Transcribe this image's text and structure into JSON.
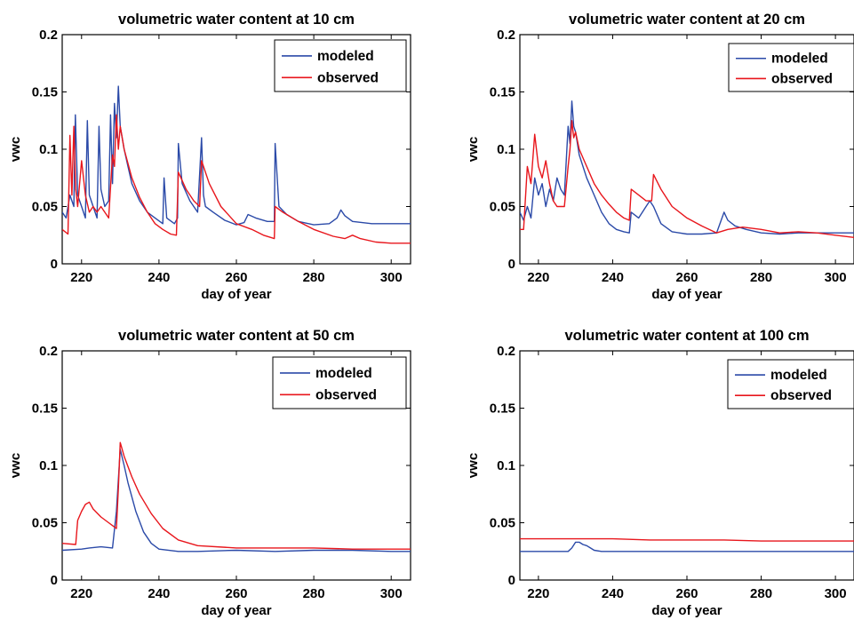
{
  "colors": {
    "modeled": "#2b4aa8",
    "observed": "#e8161c",
    "axis": "#000000"
  },
  "chart_data": [
    {
      "type": "line",
      "title": "volumetric water content at 10 cm",
      "xlabel": "day of year",
      "ylabel": "vwc",
      "xlim": [
        215,
        305
      ],
      "ylim": [
        0,
        0.2
      ],
      "xticks": [
        220,
        240,
        260,
        280,
        300
      ],
      "yticks": [
        0,
        0.05,
        0.1,
        0.15,
        0.2
      ],
      "ytick_labels": [
        "0",
        "0.05",
        "0.1",
        "0.15",
        "0.2"
      ],
      "grid": false,
      "legend": "top-right",
      "series": [
        {
          "name": "modeled",
          "color": "#2b4aa8",
          "x": [
            215,
            216,
            217,
            218,
            218.4,
            219,
            220,
            221,
            221.5,
            222,
            223,
            224,
            224.5,
            225,
            226,
            227,
            227.5,
            228,
            228.5,
            229,
            229.5,
            230,
            231,
            232,
            233,
            235,
            237,
            239,
            241,
            241.3,
            242,
            244,
            244.8,
            245,
            246,
            248,
            250,
            251,
            251.5,
            252,
            254,
            257,
            260,
            262,
            263,
            265,
            268,
            269.8,
            270,
            271,
            273,
            276,
            280,
            284,
            286,
            287,
            288,
            290,
            295,
            300,
            305
          ],
          "y": [
            0.045,
            0.04,
            0.06,
            0.05,
            0.13,
            0.06,
            0.05,
            0.04,
            0.125,
            0.06,
            0.05,
            0.04,
            0.12,
            0.065,
            0.05,
            0.055,
            0.13,
            0.07,
            0.14,
            0.11,
            0.155,
            0.12,
            0.1,
            0.085,
            0.07,
            0.055,
            0.045,
            0.04,
            0.035,
            0.075,
            0.04,
            0.035,
            0.04,
            0.105,
            0.07,
            0.055,
            0.045,
            0.11,
            0.06,
            0.05,
            0.045,
            0.038,
            0.034,
            0.036,
            0.043,
            0.04,
            0.037,
            0.037,
            0.105,
            0.05,
            0.043,
            0.037,
            0.034,
            0.035,
            0.04,
            0.047,
            0.042,
            0.037,
            0.035,
            0.035,
            0.035
          ]
        },
        {
          "name": "observed",
          "color": "#e8161c",
          "x": [
            215,
            216.5,
            217,
            217.5,
            218,
            218.5,
            219,
            220,
            221,
            222,
            223,
            224,
            225,
            226,
            227,
            228,
            228.5,
            229,
            229.5,
            230,
            231,
            233,
            235,
            237,
            239,
            241,
            243,
            244.5,
            245,
            247,
            249,
            250.5,
            251,
            253,
            256,
            260,
            264,
            267,
            269.8,
            270,
            272,
            276,
            280,
            285,
            288,
            290,
            292,
            296,
            300,
            305
          ],
          "y": [
            0.03,
            0.026,
            0.112,
            0.06,
            0.12,
            0.065,
            0.05,
            0.09,
            0.06,
            0.045,
            0.05,
            0.045,
            0.05,
            0.045,
            0.04,
            0.095,
            0.085,
            0.13,
            0.1,
            0.12,
            0.1,
            0.075,
            0.058,
            0.045,
            0.035,
            0.03,
            0.026,
            0.025,
            0.08,
            0.065,
            0.055,
            0.05,
            0.09,
            0.07,
            0.05,
            0.035,
            0.03,
            0.025,
            0.022,
            0.05,
            0.045,
            0.037,
            0.03,
            0.024,
            0.022,
            0.025,
            0.022,
            0.019,
            0.018,
            0.018
          ]
        }
      ]
    },
    {
      "type": "line",
      "title": "volumetric water content at 20 cm",
      "xlabel": "day of year",
      "ylabel": "vwc",
      "xlim": [
        215,
        305
      ],
      "ylim": [
        0,
        0.2
      ],
      "xticks": [
        220,
        240,
        260,
        280,
        300
      ],
      "yticks": [
        0,
        0.05,
        0.1,
        0.15,
        0.2
      ],
      "ytick_labels": [
        "0",
        "0.05",
        "0.1",
        "0.15",
        "0.2"
      ],
      "grid": false,
      "legend": "top-right",
      "series": [
        {
          "name": "modeled",
          "color": "#2b4aa8",
          "x": [
            215,
            216,
            217,
            218,
            219,
            220,
            221,
            222,
            223,
            224,
            225,
            226,
            227,
            228,
            228.5,
            229,
            229.5,
            230,
            231,
            233,
            235,
            237,
            239,
            241,
            243,
            244.5,
            245,
            247,
            249,
            250,
            251,
            253,
            256,
            260,
            264,
            268,
            270,
            271,
            273,
            276,
            280,
            285,
            290,
            295,
            300,
            305
          ],
          "y": [
            0.045,
            0.038,
            0.05,
            0.04,
            0.075,
            0.06,
            0.07,
            0.05,
            0.065,
            0.055,
            0.075,
            0.065,
            0.06,
            0.12,
            0.105,
            0.142,
            0.12,
            0.115,
            0.095,
            0.075,
            0.06,
            0.045,
            0.035,
            0.03,
            0.028,
            0.027,
            0.045,
            0.04,
            0.05,
            0.055,
            0.05,
            0.035,
            0.028,
            0.026,
            0.026,
            0.027,
            0.045,
            0.038,
            0.033,
            0.03,
            0.027,
            0.026,
            0.027,
            0.027,
            0.027,
            0.027
          ]
        },
        {
          "name": "observed",
          "color": "#e8161c",
          "x": [
            215,
            216,
            217,
            218,
            219,
            220,
            221,
            222,
            223,
            224,
            225,
            226,
            227,
            228,
            228.5,
            229,
            229.5,
            230,
            231,
            233,
            235,
            237,
            239,
            241,
            243,
            244.5,
            245,
            247,
            249,
            250.5,
            251,
            253,
            256,
            260,
            264,
            268,
            271,
            275,
            280,
            285,
            290,
            295,
            300,
            305
          ],
          "y": [
            0.03,
            0.03,
            0.085,
            0.07,
            0.113,
            0.085,
            0.075,
            0.09,
            0.07,
            0.055,
            0.05,
            0.05,
            0.05,
            0.085,
            0.1,
            0.125,
            0.11,
            0.115,
            0.1,
            0.085,
            0.07,
            0.06,
            0.052,
            0.045,
            0.04,
            0.038,
            0.065,
            0.06,
            0.055,
            0.055,
            0.078,
            0.065,
            0.05,
            0.04,
            0.033,
            0.027,
            0.03,
            0.032,
            0.03,
            0.027,
            0.028,
            0.027,
            0.025,
            0.023
          ]
        }
      ]
    },
    {
      "type": "line",
      "title": "volumetric water content at 50 cm",
      "xlabel": "day of year",
      "ylabel": "vwc",
      "xlim": [
        215,
        305
      ],
      "ylim": [
        0,
        0.2
      ],
      "xticks": [
        220,
        240,
        260,
        280,
        300
      ],
      "yticks": [
        0,
        0.05,
        0.1,
        0.15,
        0.2
      ],
      "ytick_labels": [
        "0",
        "0.05",
        "0.1",
        "0.15",
        "0.2"
      ],
      "grid": false,
      "legend": "top-right",
      "series": [
        {
          "name": "modeled",
          "color": "#2b4aa8",
          "x": [
            215,
            220,
            222,
            225,
            228,
            229,
            230,
            231,
            232,
            234,
            236,
            238,
            240,
            245,
            250,
            260,
            270,
            280,
            290,
            300,
            305
          ],
          "y": [
            0.026,
            0.027,
            0.028,
            0.029,
            0.028,
            0.06,
            0.114,
            0.1,
            0.085,
            0.06,
            0.042,
            0.032,
            0.027,
            0.025,
            0.025,
            0.026,
            0.025,
            0.026,
            0.026,
            0.025,
            0.025
          ]
        },
        {
          "name": "observed",
          "color": "#e8161c",
          "x": [
            215,
            218.5,
            219,
            220,
            221,
            222,
            223,
            225,
            227,
            229,
            229.5,
            230,
            231,
            233,
            235,
            238,
            241,
            245,
            250,
            260,
            270,
            280,
            290,
            300,
            305
          ],
          "y": [
            0.032,
            0.031,
            0.052,
            0.06,
            0.066,
            0.068,
            0.062,
            0.055,
            0.05,
            0.045,
            0.08,
            0.12,
            0.108,
            0.09,
            0.075,
            0.058,
            0.045,
            0.035,
            0.03,
            0.028,
            0.028,
            0.028,
            0.027,
            0.027,
            0.027
          ]
        }
      ]
    },
    {
      "type": "line",
      "title": "volumetric water content at 100 cm",
      "xlabel": "day of year",
      "ylabel": "vwc",
      "xlim": [
        215,
        305
      ],
      "ylim": [
        0,
        0.2
      ],
      "xticks": [
        220,
        240,
        260,
        280,
        300
      ],
      "yticks": [
        0,
        0.05,
        0.1,
        0.15,
        0.2
      ],
      "ytick_labels": [
        "0",
        "0.05",
        "0.1",
        "0.15",
        "0.2"
      ],
      "grid": false,
      "legend": "top-right",
      "series": [
        {
          "name": "modeled",
          "color": "#2b4aa8",
          "x": [
            215,
            228,
            229,
            230,
            231,
            232,
            233,
            234,
            235,
            237,
            240,
            260,
            280,
            300,
            305
          ],
          "y": [
            0.025,
            0.025,
            0.028,
            0.033,
            0.033,
            0.031,
            0.03,
            0.028,
            0.026,
            0.025,
            0.025,
            0.025,
            0.025,
            0.025,
            0.025
          ]
        },
        {
          "name": "observed",
          "color": "#e8161c",
          "x": [
            215,
            230,
            235,
            240,
            250,
            260,
            270,
            280,
            290,
            300,
            305
          ],
          "y": [
            0.036,
            0.036,
            0.036,
            0.036,
            0.035,
            0.035,
            0.035,
            0.034,
            0.034,
            0.034,
            0.034
          ]
        }
      ]
    }
  ]
}
